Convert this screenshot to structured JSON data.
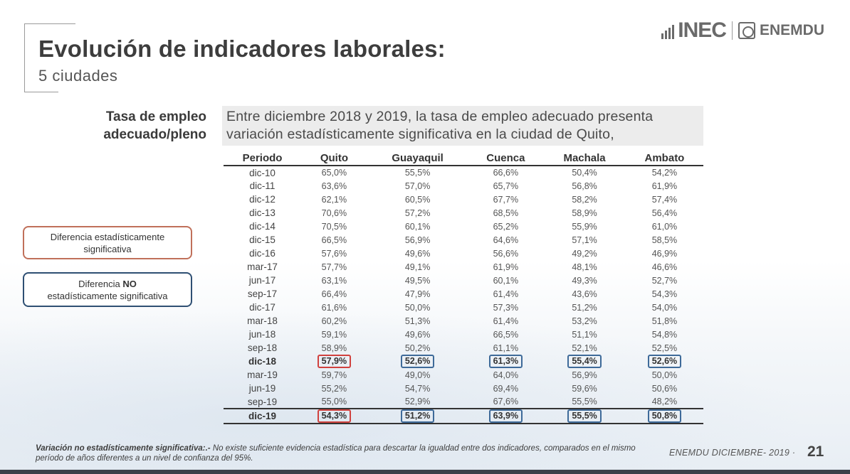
{
  "header": {
    "title": "Evolución de indicadores laborales:",
    "subtitle": "5 ciudades",
    "logo_main": "INEC",
    "logo_secondary": "ENEMDU"
  },
  "indicator": {
    "label_line1": "Tasa de empleo",
    "label_line2": "adecuado/pleno",
    "description": "Entre diciembre 2018 y 2019, la tasa de empleo adecuado presenta variación estadísticamente significativa en la ciudad de Quito,"
  },
  "legend": {
    "significant": "Diferencia estadísticamente significativa",
    "not_significant_prefix": "Diferencia",
    "not_significant_bold": "NO",
    "not_significant_suffix": "estadísticamente  significativa",
    "colors": {
      "significant": "#d0413e",
      "not_significant": "#3e6a99"
    }
  },
  "table": {
    "columns": [
      "Periodo",
      "Quito",
      "Guayaquil",
      "Cuenca",
      "Machala",
      "Ambato"
    ],
    "rows": [
      [
        "dic-10",
        "65,0%",
        "55,5%",
        "66,6%",
        "50,4%",
        "54,2%"
      ],
      [
        "dic-11",
        "63,6%",
        "57,0%",
        "65,7%",
        "56,8%",
        "61,9%"
      ],
      [
        "dic-12",
        "62,1%",
        "60,5%",
        "67,7%",
        "58,2%",
        "57,4%"
      ],
      [
        "dic-13",
        "70,6%",
        "57,2%",
        "68,5%",
        "58,9%",
        "56,4%"
      ],
      [
        "dic-14",
        "70,5%",
        "60,1%",
        "65,2%",
        "55,9%",
        "61,0%"
      ],
      [
        "dic-15",
        "66,5%",
        "56,9%",
        "64,6%",
        "57,1%",
        "58,5%"
      ],
      [
        "dic-16",
        "57,6%",
        "49,6%",
        "56,6%",
        "49,2%",
        "46,9%"
      ],
      [
        "mar-17",
        "57,7%",
        "49,1%",
        "61,9%",
        "48,1%",
        "46,6%"
      ],
      [
        "jun-17",
        "63,1%",
        "49,5%",
        "60,1%",
        "49,3%",
        "52,7%"
      ],
      [
        "sep-17",
        "66,4%",
        "47,9%",
        "61,4%",
        "43,6%",
        "54,3%"
      ],
      [
        "dic-17",
        "61,6%",
        "50,0%",
        "57,3%",
        "51,2%",
        "54,0%"
      ],
      [
        "mar-18",
        "60,2%",
        "51,3%",
        "61,4%",
        "53,2%",
        "51,8%"
      ],
      [
        "jun-18",
        "59,1%",
        "49,6%",
        "66,5%",
        "51,1%",
        "54,8%"
      ],
      [
        "sep-18",
        "58,9%",
        "50,2%",
        "61,1%",
        "52,1%",
        "52,5%"
      ],
      [
        "dic-18",
        "57,9%",
        "52,6%",
        "61,3%",
        "55,4%",
        "52,6%"
      ],
      [
        "mar-19",
        "59,7%",
        "49,0%",
        "64,0%",
        "56,9%",
        "50,0%"
      ],
      [
        "jun-19",
        "55,2%",
        "54,7%",
        "69,4%",
        "59,6%",
        "50,6%"
      ],
      [
        "sep-19",
        "55,0%",
        "52,9%",
        "67,6%",
        "55,5%",
        "48,2%"
      ],
      [
        "dic-19",
        "54,3%",
        "51,2%",
        "63,9%",
        "55,5%",
        "50,8%"
      ]
    ],
    "highlighted_periods": [
      "dic-18",
      "dic-19"
    ],
    "significance": [
      "sig",
      "nosig",
      "nosig",
      "nosig",
      "nosig"
    ]
  },
  "footer": {
    "note_bold": "Variación no estadísticamente significativa:.-",
    "note_text": "No existe suficiente evidencia estadística para descartar la igualdad entre dos indicadores, comparados en el mismo período de años diferentes a un nivel de confianza del 95%.",
    "source": "ENEMDU DICIEMBRE- 2019 ·",
    "page_number": "21"
  }
}
